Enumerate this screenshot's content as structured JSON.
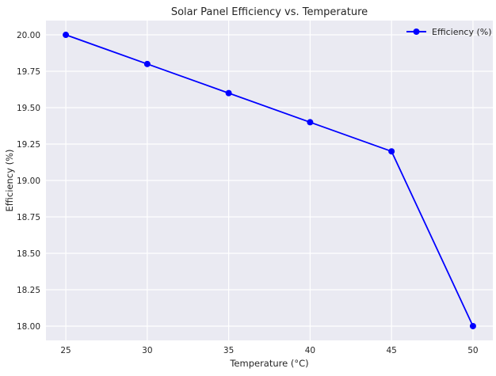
{
  "chart_data": {
    "type": "line",
    "title": "Solar Panel Efficiency vs. Temperature",
    "xlabel": "Temperature (°C)",
    "ylabel": "Efficiency (%)",
    "x": [
      25,
      30,
      35,
      40,
      45,
      50
    ],
    "series": [
      {
        "name": "Efficiency (%)",
        "values": [
          20.0,
          19.8,
          19.6,
          19.4,
          19.2,
          18.0
        ],
        "color": "#0000ff",
        "marker": "circle"
      }
    ],
    "xticks": [
      25,
      30,
      35,
      40,
      45,
      50
    ],
    "xtick_labels": [
      "25",
      "30",
      "35",
      "40",
      "45",
      "50"
    ],
    "yticks": [
      18.0,
      18.25,
      18.5,
      18.75,
      19.0,
      19.25,
      19.5,
      19.75,
      20.0
    ],
    "ytick_labels": [
      "18.00",
      "18.25",
      "18.50",
      "18.75",
      "19.00",
      "19.25",
      "19.50",
      "19.75",
      "20.00"
    ],
    "xlim": [
      23.78,
      51.22
    ],
    "ylim": [
      17.902,
      20.098
    ],
    "grid": true,
    "legend_position": "top-right",
    "background": "#eaeaf2"
  }
}
